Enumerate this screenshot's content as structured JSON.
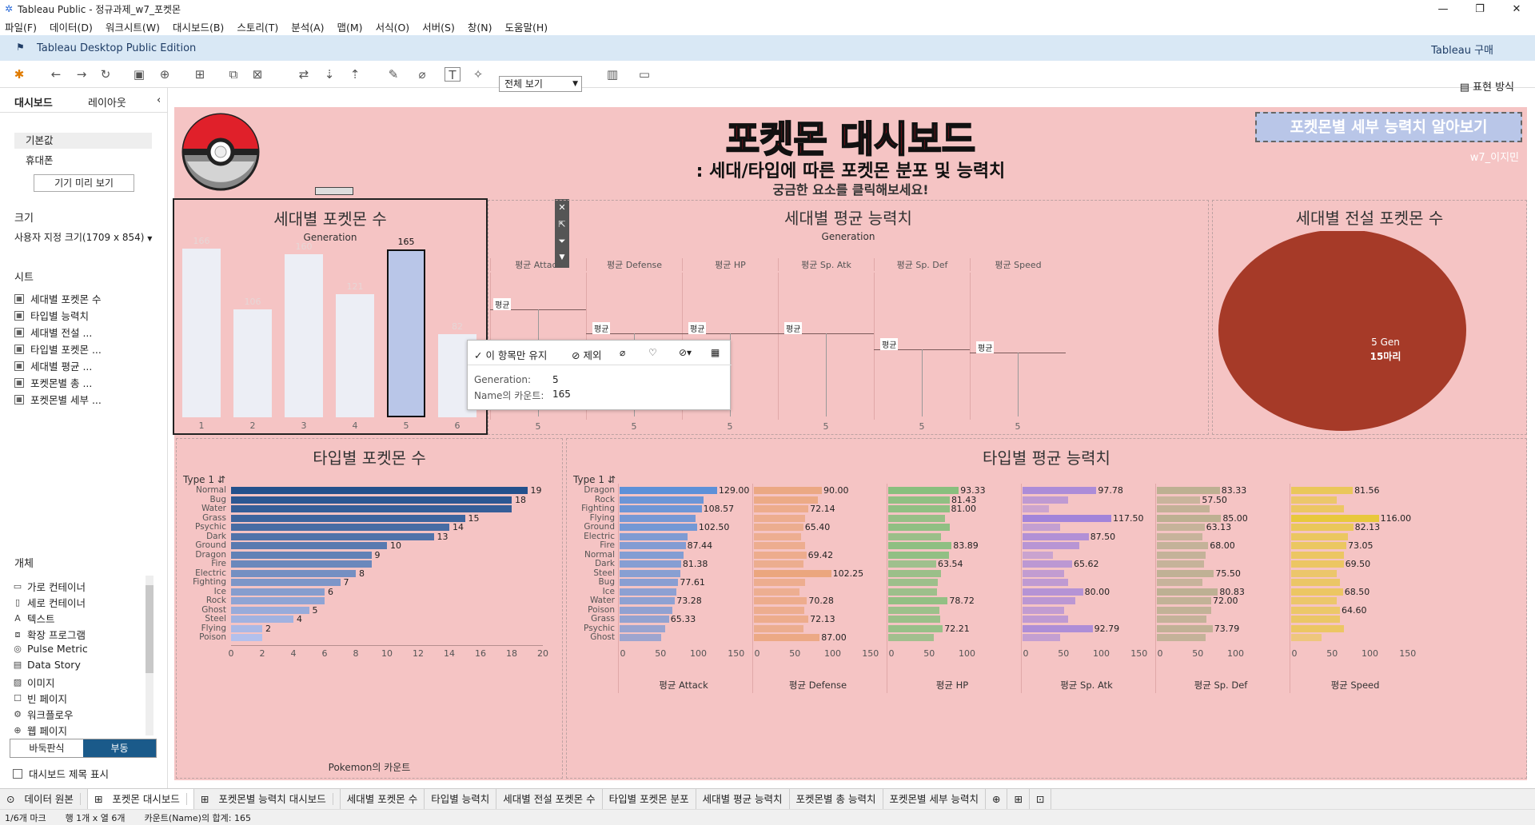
{
  "window": {
    "title": "Tableau Public - 정규과제_w7_포켓몬",
    "controls": [
      "—",
      "❐",
      "✕"
    ]
  },
  "menu": [
    "파일(F)",
    "데이터(D)",
    "워크시트(W)",
    "대시보드(B)",
    "스토리(T)",
    "분석(A)",
    "맵(M)",
    "서식(O)",
    "서버(S)",
    "창(N)",
    "도움말(H)"
  ],
  "edition": {
    "label": "Tableau Desktop Public Edition",
    "buy": "Tableau 구매"
  },
  "toolbar": {
    "view": "전체 보기",
    "show_me": "표현 방식"
  },
  "left": {
    "tabs": [
      "대시보드",
      "레이아웃"
    ],
    "devices": [
      "기본값",
      "휴대폰"
    ],
    "preview_btn": "기기 미리 보기",
    "size_label": "크기",
    "size_value": "사용자 지정 크기(1709 x 854)",
    "sheets_label": "시트",
    "sheets": [
      "세대별 포켓몬 수",
      "타입별 능력치",
      "세대별 전설 ...",
      "타입별 포켓몬 ...",
      "세대별 평균 ...",
      "포켓몬별 총 ...",
      "포켓몬별 세부 ..."
    ],
    "objects_label": "개체",
    "objects": [
      "가로 컨테이너",
      "세로 컨테이너",
      "텍스트",
      "확장 프로그램",
      "Pulse Metric",
      "Data Story",
      "이미지",
      "빈 페이지",
      "워크플로우",
      "웹 페이지"
    ],
    "tiled": "바둑판식",
    "floating": "부동",
    "show_title": "대시보드 제목 표시"
  },
  "dashboard": {
    "title": "포켓몬 대시보드",
    "subtitle": ": 세대/타입에 따른 포켓몬 분포 및 능력치",
    "hint": "궁금한 요소를 클릭해보세요!",
    "detail_btn": "포켓몬별 세부 능력치 알아보기",
    "author": "w7_이지민",
    "colors": {
      "bg": "#f5c4c4",
      "legend": "#a63a28",
      "sel": "#b9c6e8"
    }
  },
  "gen_chart": {
    "title": "세대별 포켓몬 수",
    "header": "Generation",
    "categories": [
      "1",
      "2",
      "3",
      "4",
      "5",
      "6"
    ],
    "values": [
      166,
      106,
      160,
      121,
      165,
      82
    ],
    "labels": [
      "166",
      "106",
      "160",
      "121",
      "165",
      "82"
    ],
    "selected": 4
  },
  "avg_chart": {
    "title": "세대별 평균 능력치",
    "header": "Generation",
    "measures": [
      "평균 Attack",
      "평균 Defense",
      "평균 HP",
      "평균 Sp. Atk",
      "평균 Sp. Def",
      "평균 Speed"
    ],
    "gen_label": "5",
    "ref_label": "평균"
  },
  "legend_chart": {
    "title": "세대별 전설 포켓몬 수",
    "label1": "5 Gen",
    "label2": "15마리"
  },
  "type_count": {
    "title": "타입별 포켓몬 수",
    "header": "Type 1",
    "xlabel": "Pokemon의 카운트",
    "categories": [
      "Normal",
      "Bug",
      "Water",
      "Grass",
      "Psychic",
      "Dark",
      "Ground",
      "Dragon",
      "Fire",
      "Electric",
      "Fighting",
      "Ice",
      "Rock",
      "Ghost",
      "Steel",
      "Flying",
      "Poison"
    ],
    "values": [
      19,
      18,
      18,
      15,
      14,
      13,
      10,
      9,
      9,
      8,
      7,
      6,
      6,
      5,
      4,
      2,
      2
    ],
    "labels": [
      "19",
      "18",
      "",
      "15",
      "14",
      "13",
      "10",
      "9",
      "",
      "8",
      "7",
      "6",
      "",
      "5",
      "4",
      "2",
      ""
    ],
    "ticks": [
      "0",
      "2",
      "4",
      "6",
      "8",
      "10",
      "12",
      "14",
      "16",
      "18",
      "20"
    ]
  },
  "type_avg": {
    "title": "타입별 평균 능력치",
    "header": "Type 1",
    "categories": [
      "Dragon",
      "Rock",
      "Fighting",
      "Flying",
      "Ground",
      "Electric",
      "Fire",
      "Normal",
      "Dark",
      "Steel",
      "Bug",
      "Ice",
      "Water",
      "Poison",
      "Grass",
      "Psychic",
      "Ghost"
    ],
    "series": [
      {
        "name": "평균 Attack",
        "color": "#5b8fd8",
        "values": [
          129,
          111,
          108.57,
          100,
          102.5,
          90,
          87.44,
          85,
          81.38,
          80,
          77.61,
          75,
          73.28,
          70,
          65.33,
          60,
          55
        ],
        "labels": [
          "129.00",
          "",
          "108.57",
          "",
          "102.50",
          "",
          "87.44",
          "",
          "81.38",
          "",
          "77.61",
          "",
          "73.28",
          "",
          "65.33",
          "",
          ""
        ]
      },
      {
        "name": "평균 Defense",
        "color": "#e8a070",
        "values": [
          90,
          85,
          72.14,
          68,
          65.4,
          62,
          68,
          69.42,
          66,
          102.25,
          68,
          60,
          70.28,
          67,
          72.13,
          66,
          87
        ],
        "labels": [
          "90.00",
          "",
          "72.14",
          "",
          "65.40",
          "",
          "",
          "69.42",
          "",
          "102.25",
          "",
          "",
          "70.28",
          "",
          "72.13",
          "",
          "87.00"
        ]
      },
      {
        "name": "평균 HP",
        "color": "#6abd6a",
        "values": [
          93.33,
          81.43,
          81,
          75,
          81,
          70,
          83.89,
          80,
          63.54,
          70,
          66,
          65,
          78.72,
          68,
          69,
          72.21,
          60
        ],
        "labels": [
          "93.33",
          "81.43",
          "81.00",
          "",
          "",
          "",
          "83.89",
          "",
          "63.54",
          "",
          "",
          "",
          "78.72",
          "",
          "",
          "72.21",
          ""
        ]
      },
      {
        "name": "평균 Sp. Atk",
        "color": "#9b7fdc",
        "values": [
          97.78,
          60,
          35,
          117.5,
          50,
          87.5,
          75,
          40,
          65.62,
          55,
          60,
          80,
          70,
          55,
          60,
          92.79,
          50
        ],
        "labels": [
          "97.78",
          "",
          "",
          "117.50",
          "",
          "87.50",
          "",
          "",
          "65.62",
          "",
          "",
          "80.00",
          "",
          "",
          "",
          "92.79",
          ""
        ]
      },
      {
        "name": "평균 Sp. Def",
        "color": "#a8a880",
        "values": [
          83.33,
          57.5,
          70,
          85,
          63.13,
          60,
          68,
          65,
          62,
          75.5,
          60,
          80.83,
          72,
          72,
          66,
          73.79,
          65
        ],
        "labels": [
          "83.33",
          "57.50",
          "",
          "85.00",
          "63.13",
          "",
          "68.00",
          "",
          "",
          "75.50",
          "",
          "80.83",
          "72.00",
          "",
          "",
          "73.79",
          ""
        ]
      },
      {
        "name": "평균 Speed",
        "color": "#e6c830",
        "values": [
          81.56,
          60,
          70,
          116,
          82.13,
          75,
          73.05,
          70,
          69.5,
          60,
          65,
          68.5,
          60,
          64.6,
          65,
          70,
          40
        ],
        "labels": [
          "81.56",
          "",
          "",
          "116.00",
          "82.13",
          "",
          "73.05",
          "",
          "69.50",
          "",
          "",
          "68.50",
          "",
          "64.60",
          "",
          "",
          ""
        ]
      }
    ],
    "ticks": [
      [
        "0",
        "50",
        "100",
        "150"
      ],
      [
        "0",
        "50",
        "100",
        "150"
      ],
      [
        "0",
        "50",
        "100"
      ],
      [
        "0",
        "50",
        "100",
        "150"
      ],
      [
        "0",
        "50",
        "100"
      ],
      [
        "0",
        "50",
        "100",
        "150"
      ]
    ]
  },
  "tooltip": {
    "keep": "이 항목만 유지",
    "exclude": "제외",
    "k1": "Generation:",
    "v1": "5",
    "k2": "Name의 카운트:",
    "v2": "165"
  },
  "bottom_tabs": [
    "데이터 원본",
    "포켓몬 대시보드",
    "포켓몬별 능력치 대시보드",
    "세대별 포켓몬 수",
    "타입별 능력치",
    "세대별 전설 포켓몬 수",
    "타입별 포켓몬 분포",
    "세대별 평균 능력치",
    "포켓몬별 총 능력치",
    "포켓몬별 세부 능력치"
  ],
  "status": {
    "marks": "1/6개 마크",
    "rows": "행 1개 x 열 6개",
    "sum": "카운트(Name)의 합계: 165"
  }
}
